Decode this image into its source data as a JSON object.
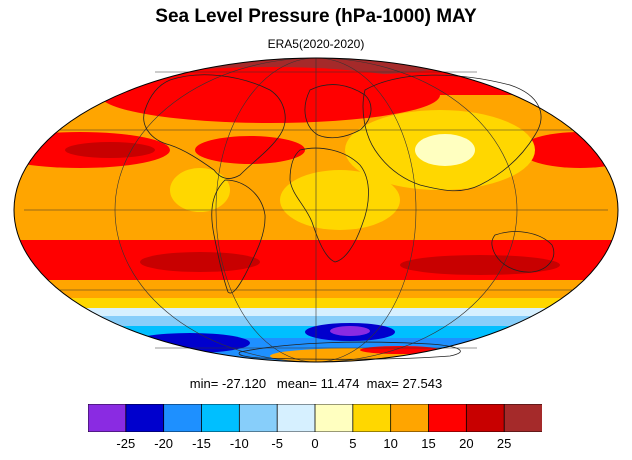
{
  "title": "Sea Level Pressure (hPa-1000) MAY",
  "subtitle": "ERA5(2020-2020)",
  "stats": {
    "min_label": "min=",
    "min": "-27.120",
    "mean_label": "mean=",
    "mean": "11.474",
    "max_label": "max=",
    "max": "27.543"
  },
  "map": {
    "projection": "Mollweide",
    "variable": "Sea Level Pressure (hPa-1000)",
    "graticule": true,
    "coastlines": true
  },
  "legend": {
    "colors": [
      "#8a2be2",
      "#0000cd",
      "#1e90ff",
      "#00bfff",
      "#87cefa",
      "#d6f0ff",
      "#ffffc0",
      "#ffd700",
      "#ffa500",
      "#ff0000",
      "#c80000",
      "#a52a2a"
    ],
    "boundaries": [
      -25,
      -20,
      -15,
      -10,
      -5,
      0,
      5,
      10,
      15,
      20,
      25
    ],
    "tick_labels": [
      "-25",
      "-20",
      "-15",
      "-10",
      "-5",
      "0",
      "5",
      "10",
      "15",
      "20",
      "25"
    ]
  }
}
